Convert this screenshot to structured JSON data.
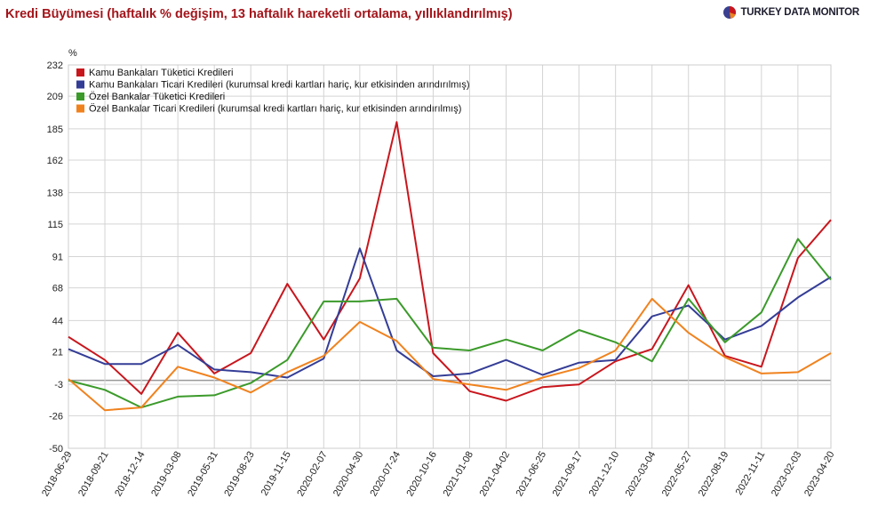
{
  "title": "Kredi Büyümesi (haftalık % değişim, 13 haftalık hareketli ortalama, yıllıklandırılmış)",
  "brand": {
    "name": "TURKEY DATA MONITOR",
    "logo_icon": "pie-logo-icon"
  },
  "colors": {
    "title": "#a3151b",
    "kamu_tuketici": "#c8161d",
    "kamu_ticari": "#343d96",
    "ozel_tuketici": "#3b9a2a",
    "ozel_ticari": "#f0821e",
    "grid": "#d4d4d4",
    "zero_line": "#999999"
  },
  "chart_data": {
    "type": "line",
    "ylabel": "%",
    "ylim": [
      -50,
      232
    ],
    "yticks": [
      "232",
      "209",
      "185",
      "162",
      "138",
      "115",
      "91",
      "68",
      "44",
      "21",
      "-3",
      "-26",
      "-50"
    ],
    "xlim": [
      "2018-06-29",
      "2023-04-20"
    ],
    "xticks": [
      "2018-06-29",
      "2018-09-21",
      "2018-12-14",
      "2019-03-08",
      "2019-05-31",
      "2019-08-23",
      "2019-11-15",
      "2020-02-07",
      "2020-04-30",
      "2020-07-24",
      "2020-10-16",
      "2021-01-08",
      "2021-04-02",
      "2021-06-25",
      "2021-09-17",
      "2021-12-10",
      "2022-03-04",
      "2022-05-27",
      "2022-08-19",
      "2022-11-11",
      "2023-02-03",
      "2023-04-20"
    ],
    "grid": true,
    "legend_position": "top-left",
    "x": [
      "2018-06-29",
      "2018-09-21",
      "2018-12-14",
      "2019-03-08",
      "2019-05-31",
      "2019-08-23",
      "2019-11-15",
      "2020-02-07",
      "2020-04-30",
      "2020-07-24",
      "2020-10-16",
      "2021-01-08",
      "2021-04-02",
      "2021-06-25",
      "2021-09-17",
      "2021-12-10",
      "2022-03-04",
      "2022-05-27",
      "2022-08-19",
      "2022-11-11",
      "2023-02-03",
      "2023-04-20"
    ],
    "series": [
      {
        "name": "Kamu Bankaları Tüketici Kredileri",
        "color": "#c8161d",
        "values": [
          32,
          15,
          -10,
          35,
          5,
          20,
          71,
          30,
          75,
          190,
          20,
          -8,
          -15,
          -5,
          -3,
          14,
          23,
          70,
          18,
          10,
          90,
          118
        ]
      },
      {
        "name": "Kamu Bankaları Ticari Kredileri (kurumsal kredi kartları hariç, kur etkisinden arındırılmış)",
        "color": "#343d96",
        "values": [
          23,
          12,
          12,
          26,
          8,
          6,
          2,
          16,
          97,
          22,
          3,
          5,
          15,
          4,
          13,
          15,
          47,
          55,
          30,
          40,
          61,
          76
        ]
      },
      {
        "name": "Özel Bankalar Tüketici Kredileri",
        "color": "#3b9a2a",
        "values": [
          0,
          -7,
          -20,
          -12,
          -11,
          -2,
          15,
          58,
          58,
          60,
          24,
          22,
          30,
          22,
          37,
          28,
          14,
          60,
          28,
          50,
          104,
          74
        ]
      },
      {
        "name": "Özel Bankalar Ticari Kredileri (kurumsal kredi kartları hariç, kur etkisinden arındırılmış)",
        "color": "#f0821e",
        "values": [
          1,
          -22,
          -20,
          10,
          2,
          -9,
          6,
          18,
          43,
          29,
          1,
          -3,
          -7,
          2,
          9,
          22,
          60,
          35,
          17,
          5,
          6,
          20
        ]
      }
    ]
  }
}
